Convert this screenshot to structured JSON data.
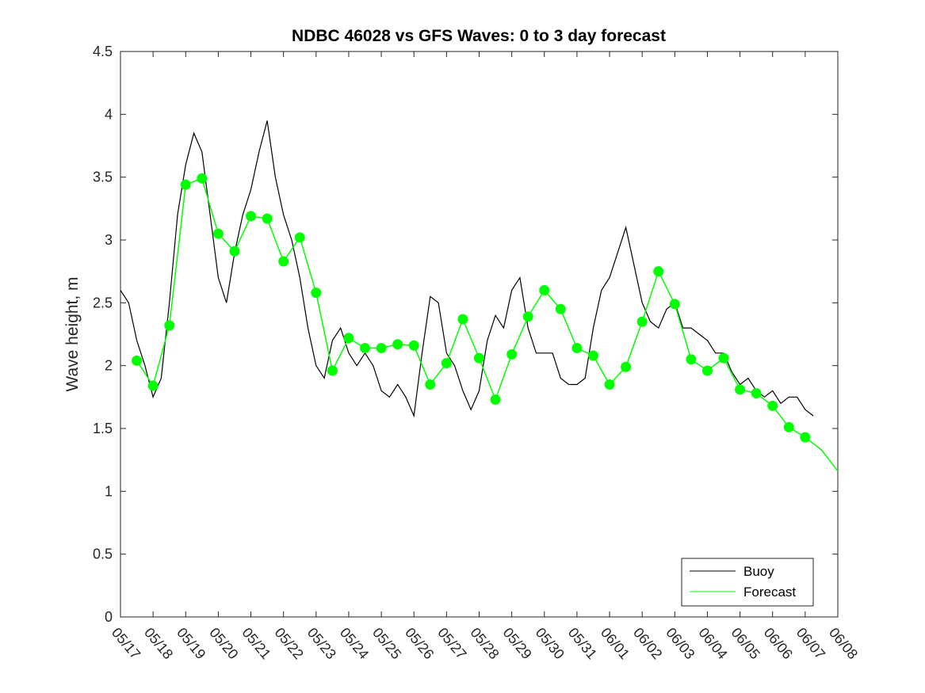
{
  "chart_data": {
    "type": "line",
    "title": "NDBC 46028 vs GFS Waves: 0 to 3 day forecast",
    "xlabel": "",
    "ylabel": "Wave height, m",
    "x_tick_labels": [
      "05/17",
      "05/18",
      "05/19",
      "05/20",
      "05/21",
      "05/22",
      "05/23",
      "05/24",
      "05/25",
      "05/26",
      "05/27",
      "05/28",
      "05/29",
      "05/30",
      "05/31",
      "06/01",
      "06/02",
      "06/03",
      "06/04",
      "06/05",
      "06/06",
      "06/07",
      "06/08"
    ],
    "y_tick_labels": [
      "0",
      "0.5",
      "1",
      "1.5",
      "2",
      "2.5",
      "3",
      "3.5",
      "4",
      "4.5"
    ],
    "xlim": [
      0,
      22
    ],
    "ylim": [
      0,
      4.5
    ],
    "legend_position": "bottom-right",
    "grid": false,
    "series": [
      {
        "name": "Buoy",
        "color": "#000000",
        "x": [
          0,
          0.25,
          0.5,
          0.75,
          1.0,
          1.25,
          1.5,
          1.75,
          2.0,
          2.25,
          2.5,
          2.75,
          3.0,
          3.25,
          3.5,
          3.75,
          4.0,
          4.25,
          4.5,
          4.75,
          5.0,
          5.25,
          5.5,
          5.75,
          6.0,
          6.25,
          6.5,
          6.75,
          7.0,
          7.25,
          7.5,
          7.75,
          8.0,
          8.25,
          8.5,
          8.75,
          9.0,
          9.25,
          9.5,
          9.75,
          10.0,
          10.25,
          10.5,
          10.75,
          11.0,
          11.25,
          11.5,
          11.75,
          12.0,
          12.25,
          12.5,
          12.75,
          13.0,
          13.25,
          13.5,
          13.75,
          14.0,
          14.25,
          14.5,
          14.75,
          15.0,
          15.25,
          15.5,
          15.75,
          16.0,
          16.25,
          16.5,
          16.75,
          17.0,
          17.25,
          17.5,
          17.75,
          18.0,
          18.25,
          18.5,
          18.75,
          19.0,
          19.25,
          19.5,
          19.75,
          20.0,
          20.25,
          20.5,
          20.75,
          21.0,
          21.25
        ],
        "values": [
          2.6,
          2.5,
          2.2,
          2.0,
          1.75,
          1.9,
          2.5,
          3.2,
          3.6,
          3.85,
          3.7,
          3.2,
          2.7,
          2.5,
          2.9,
          3.2,
          3.4,
          3.7,
          3.95,
          3.5,
          3.2,
          3.0,
          2.7,
          2.3,
          2.0,
          1.9,
          2.2,
          2.3,
          2.1,
          2.0,
          2.1,
          2.0,
          1.8,
          1.75,
          1.85,
          1.75,
          1.6,
          2.1,
          2.55,
          2.5,
          2.1,
          2.0,
          1.8,
          1.65,
          1.8,
          2.2,
          2.4,
          2.3,
          2.6,
          2.7,
          2.3,
          2.1,
          2.1,
          2.1,
          1.9,
          1.85,
          1.85,
          1.9,
          2.3,
          2.6,
          2.7,
          2.9,
          3.1,
          2.8,
          2.5,
          2.35,
          2.3,
          2.45,
          2.5,
          2.3,
          2.3,
          2.25,
          2.2,
          2.1,
          2.1,
          1.95,
          1.85,
          1.9,
          1.8,
          1.75,
          1.8,
          1.7,
          1.75,
          1.75,
          1.65,
          1.6
        ]
      },
      {
        "name": "Forecast",
        "color": "#00ff00",
        "x": [
          0.5,
          1.0,
          1.5,
          2.0,
          2.5,
          3.0,
          3.5,
          4.0,
          4.5,
          5.0,
          5.5,
          6.0,
          6.5,
          7.0,
          7.5,
          8.0,
          8.5,
          9.0,
          9.5,
          10.0,
          10.5,
          11.0,
          11.5,
          12.0,
          12.5,
          13.0,
          13.5,
          14.0,
          14.5,
          15.0,
          15.5,
          16.0,
          16.5,
          17.0,
          17.5,
          18.0,
          18.5,
          19.0,
          19.5,
          20.0,
          20.5,
          21.0,
          21.5,
          22.0
        ],
        "values": [
          2.04,
          1.84,
          2.32,
          3.44,
          3.49,
          3.05,
          2.91,
          3.19,
          3.17,
          2.83,
          3.02,
          2.58,
          1.96,
          2.22,
          2.14,
          2.14,
          2.17,
          2.16,
          1.85,
          2.02,
          2.37,
          2.06,
          1.73,
          2.09,
          2.39,
          2.6,
          2.45,
          2.14,
          2.08,
          1.85,
          1.99,
          2.35,
          2.75,
          2.49,
          2.05,
          1.96,
          2.06,
          1.81,
          1.78,
          1.68,
          1.51,
          1.43,
          1.33,
          1.16
        ]
      }
    ]
  }
}
